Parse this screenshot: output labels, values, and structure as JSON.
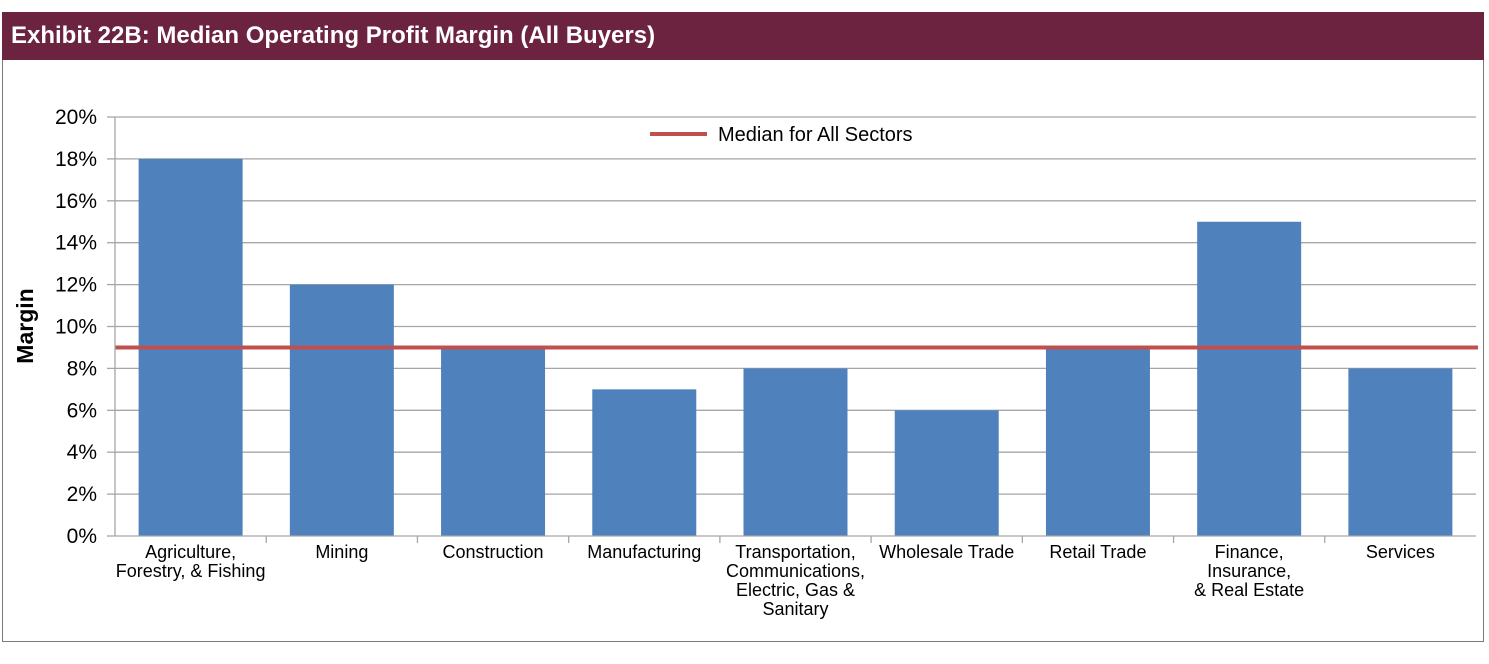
{
  "header": {
    "title": "Exhibit 22B: Median Operating Profit Margin (All Buyers)"
  },
  "colors": {
    "header": "#6b2340",
    "bar": "#4f81bd",
    "median_line": "#c0504d",
    "grid": "#a6a6a6"
  },
  "chart_data": {
    "type": "bar",
    "title": "Exhibit 22B: Median Operating Profit Margin (All Buyers)",
    "xlabel": "",
    "ylabel": "Margin",
    "ylim": [
      0,
      20
    ],
    "yticks": [
      0,
      2,
      4,
      6,
      8,
      10,
      12,
      14,
      16,
      18,
      20
    ],
    "ytick_labels": [
      "0%",
      "2%",
      "4%",
      "6%",
      "8%",
      "10%",
      "12%",
      "14%",
      "16%",
      "18%",
      "20%"
    ],
    "grid": true,
    "categories": [
      [
        "Agriculture,",
        "Forestry, & Fishing"
      ],
      [
        "Mining"
      ],
      [
        "Construction"
      ],
      [
        "Manufacturing"
      ],
      [
        "Transportation,",
        "Communications,",
        "Electric, Gas &",
        "Sanitary"
      ],
      [
        "Wholesale Trade"
      ],
      [
        "Retail Trade"
      ],
      [
        "Finance,",
        "Insurance,",
        "& Real Estate"
      ],
      [
        "Services"
      ]
    ],
    "values": [
      18,
      12,
      9,
      7,
      8,
      6,
      9,
      15,
      8
    ],
    "reference_line": {
      "name": "Median for All Sectors",
      "value": 9
    },
    "legend": {
      "position": "top-center",
      "entries": [
        "Median for All Sectors"
      ]
    }
  }
}
